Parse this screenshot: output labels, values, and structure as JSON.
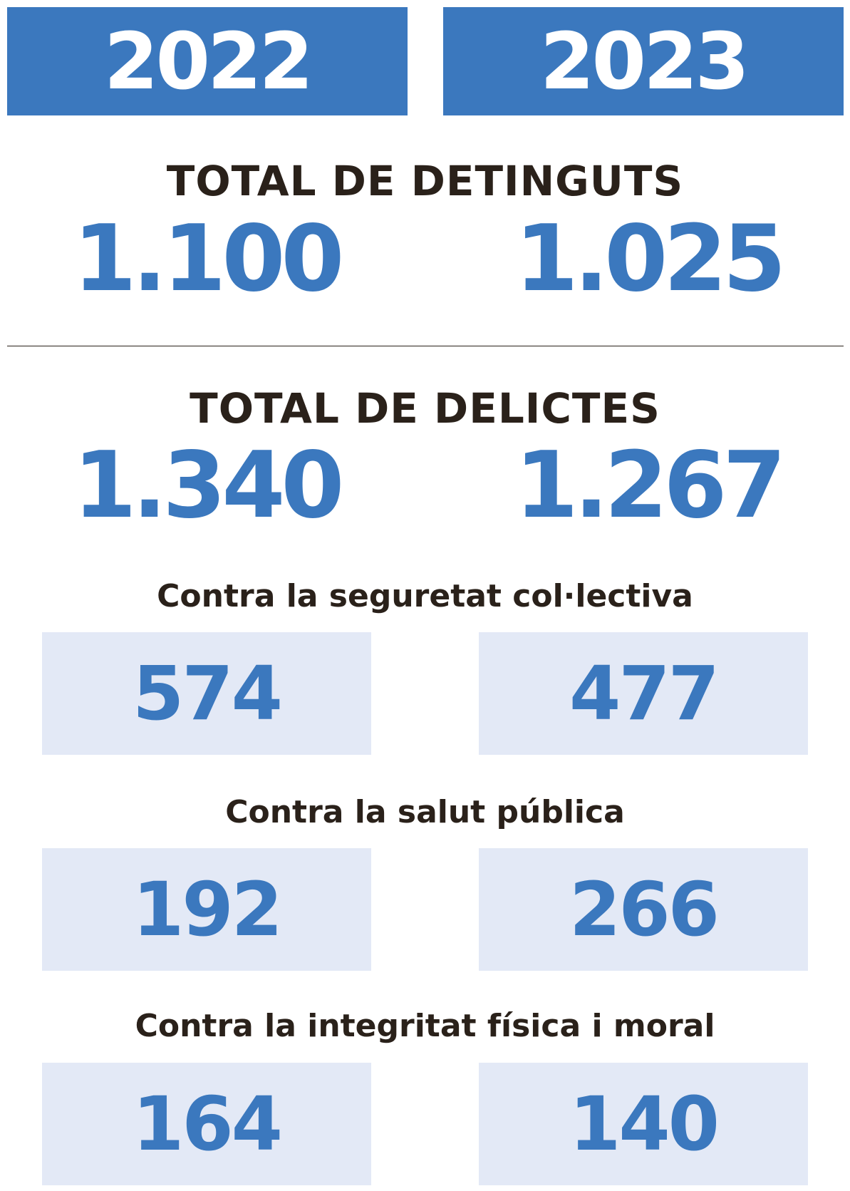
{
  "years": [
    "2022",
    "2023"
  ],
  "detinguts": {
    "title": "TOTAL DE DETINGUTS",
    "values": [
      "1.100",
      "1.025"
    ]
  },
  "delictes": {
    "title": "TOTAL DE DELICTES",
    "values": [
      "1.340",
      "1.267"
    ]
  },
  "categories": [
    {
      "label": "Contra la seguretat col·lectiva",
      "values": [
        "574",
        "477"
      ]
    },
    {
      "label": "Contra la salut pública",
      "values": [
        "192",
        "266"
      ]
    },
    {
      "label": "Contra la integritat física i moral",
      "values": [
        "164",
        "140"
      ]
    }
  ],
  "colors": {
    "accent": "#3b78be",
    "box_background": "#e3e9f6",
    "text_dark": "#2a211a"
  }
}
